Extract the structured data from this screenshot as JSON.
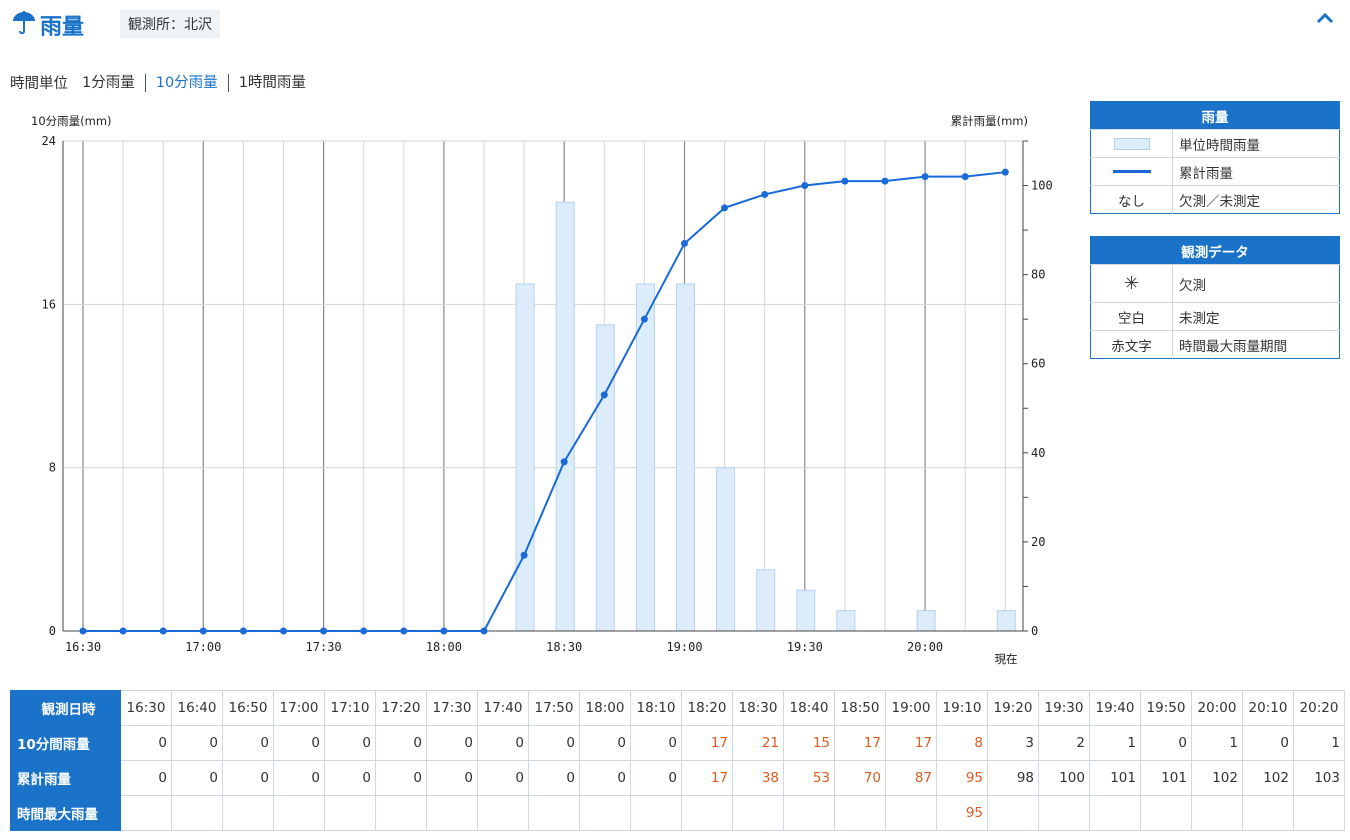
{
  "header": {
    "title": "雨量",
    "station": "観測所：北沢"
  },
  "unit_selector": {
    "label": "時間単位",
    "options": [
      "1分雨量",
      "10分雨量",
      "1時間雨量"
    ],
    "selected": "10分雨量"
  },
  "chart_data": {
    "type": "bar",
    "ylabel_left": "10分雨量(mm)",
    "ylabel_right": "累計雨量(mm)",
    "ylim_left": [
      0,
      24
    ],
    "yticks_left": [
      "0",
      "8",
      "16",
      "24"
    ],
    "ylim_right": [
      0,
      110
    ],
    "yticks_right": [
      "0",
      "20",
      "40",
      "60",
      "80",
      "100"
    ],
    "x": [
      "16:30",
      "16:40",
      "16:50",
      "17:00",
      "17:10",
      "17:20",
      "17:30",
      "17:40",
      "17:50",
      "18:00",
      "18:10",
      "18:20",
      "18:30",
      "18:40",
      "18:50",
      "19:00",
      "19:10",
      "19:20",
      "19:30",
      "19:40",
      "19:50",
      "20:00",
      "20:10",
      "20:20"
    ],
    "xtick_labels": [
      "16:30",
      "17:00",
      "17:30",
      "18:00",
      "18:30",
      "19:00",
      "19:30",
      "20:00"
    ],
    "now_label": "現在",
    "series": [
      {
        "name": "単位時間雨量",
        "kind": "bar",
        "axis": "left",
        "color": "#dcecfb",
        "values": [
          0,
          0,
          0,
          0,
          0,
          0,
          0,
          0,
          0,
          0,
          0,
          17,
          21,
          15,
          17,
          17,
          8,
          3,
          2,
          1,
          0,
          1,
          0,
          1
        ]
      },
      {
        "name": "累計雨量",
        "kind": "line",
        "axis": "right",
        "color": "#1a6ad8",
        "values": [
          0,
          0,
          0,
          0,
          0,
          0,
          0,
          0,
          0,
          0,
          0,
          17,
          38,
          53,
          70,
          87,
          95,
          98,
          100,
          101,
          101,
          102,
          102,
          103
        ]
      }
    ]
  },
  "legend_rain": {
    "title": "雨量",
    "rows": [
      {
        "symbol": "",
        "text": "単位時間雨量"
      },
      {
        "symbol": "",
        "text": "累計雨量"
      },
      {
        "symbol": "なし",
        "text": "欠測／未測定"
      }
    ]
  },
  "legend_obs": {
    "title": "観測データ",
    "rows": [
      {
        "symbol": "✳",
        "text": "欠測"
      },
      {
        "symbol": "空白",
        "text": "未測定"
      },
      {
        "symbol": "赤文字",
        "text": "時間最大雨量期間"
      }
    ]
  },
  "table": {
    "row_headers": [
      "観測日時",
      "10分間雨量",
      "累計雨量",
      "時間最大雨量"
    ],
    "times": [
      "16:30",
      "16:40",
      "16:50",
      "17:00",
      "17:10",
      "17:20",
      "17:30",
      "17:40",
      "17:50",
      "18:00",
      "18:10",
      "18:20",
      "18:30",
      "18:40",
      "18:50",
      "19:00",
      "19:10",
      "19:20",
      "19:30",
      "19:40",
      "19:50",
      "20:00",
      "20:10",
      "20:20"
    ],
    "rain10": [
      "0",
      "0",
      "0",
      "0",
      "0",
      "0",
      "0",
      "0",
      "0",
      "0",
      "0",
      "17",
      "21",
      "15",
      "17",
      "17",
      "8",
      "3",
      "2",
      "1",
      "0",
      "1",
      "0",
      "1"
    ],
    "cumulative": [
      "0",
      "0",
      "0",
      "0",
      "0",
      "0",
      "0",
      "0",
      "0",
      "0",
      "0",
      "17",
      "38",
      "53",
      "70",
      "87",
      "95",
      "98",
      "100",
      "101",
      "101",
      "102",
      "102",
      "103"
    ],
    "hourly_max": [
      "",
      "",
      "",
      "",
      "",
      "",
      "",
      "",
      "",
      "",
      "",
      "",
      "",
      "",
      "",
      "",
      "95",
      "",
      "",
      "",
      "",
      "",
      "",
      ""
    ],
    "highlight_from": 11,
    "highlight_to": 16,
    "highlight_color": "#e05a1e"
  }
}
